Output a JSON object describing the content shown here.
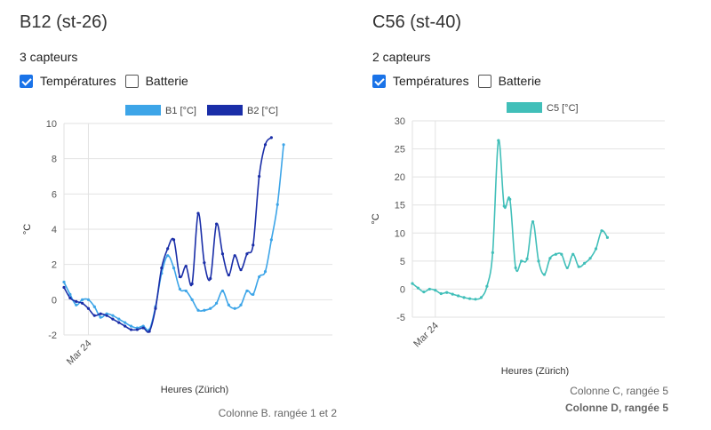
{
  "panels": [
    {
      "title": "B12 (st-26)",
      "subtitle": "3 capteurs",
      "checkboxes": [
        {
          "label": "Températures",
          "checked": true
        },
        {
          "label": "Batterie",
          "checked": false
        }
      ],
      "footer": [
        "Colonne B. rangée 1 et 2"
      ]
    },
    {
      "title": "C56 (st-40)",
      "subtitle": "2 capteurs",
      "checkboxes": [
        {
          "label": "Températures",
          "checked": true
        },
        {
          "label": "Batterie",
          "checked": false
        }
      ],
      "footer": [
        "Colonne C, rangée 5",
        "Colonne D, rangée 5"
      ]
    }
  ],
  "chart_data": [
    {
      "type": "line",
      "xlabel": "Heures (Zürich)",
      "ylabel": "°C",
      "ylim": [
        -2,
        10
      ],
      "yticks": [
        -2,
        0,
        2,
        4,
        6,
        8,
        10
      ],
      "xtick": {
        "label": "Mar 24",
        "at": 4
      },
      "xlim": [
        0,
        44
      ],
      "grid": true,
      "legend": "top",
      "x": [
        0,
        1,
        2,
        3,
        4,
        5,
        6,
        7,
        8,
        9,
        10,
        11,
        12,
        13,
        14,
        15,
        16,
        17,
        18,
        19,
        20,
        21,
        22,
        23,
        24,
        25,
        26,
        27,
        28,
        29,
        30,
        31,
        32,
        33,
        34,
        35,
        36,
        37,
        38,
        39,
        40,
        41,
        42,
        43,
        44
      ],
      "series": [
        {
          "name": "B1 [°C]",
          "color": "#3da5e8",
          "values": [
            1.0,
            0.3,
            -0.3,
            0.0,
            0.0,
            -0.4,
            -1.0,
            -0.8,
            -0.9,
            -1.1,
            -1.3,
            -1.5,
            -1.6,
            -1.5,
            -1.7,
            -0.4,
            1.5,
            2.5,
            1.8,
            0.6,
            0.5,
            0.0,
            -0.6,
            -0.6,
            -0.5,
            -0.2,
            0.5,
            -0.3,
            -0.5,
            -0.3,
            0.5,
            0.3,
            1.3,
            1.6,
            3.4,
            5.4,
            8.8,
            null,
            null,
            null,
            null,
            null,
            null,
            null,
            null
          ]
        },
        {
          "name": "B2 [°C]",
          "color": "#1a2ea8",
          "values": [
            0.7,
            0.1,
            -0.1,
            -0.2,
            -0.5,
            -0.9,
            -0.8,
            -0.9,
            -1.1,
            -1.3,
            -1.5,
            -1.7,
            -1.7,
            -1.6,
            -1.8,
            -0.5,
            1.8,
            2.9,
            3.4,
            1.3,
            1.9,
            0.9,
            4.9,
            2.1,
            1.2,
            4.3,
            2.6,
            1.4,
            2.5,
            1.7,
            2.6,
            3.1,
            7.0,
            8.8,
            9.2,
            null,
            null,
            null,
            null,
            null,
            null,
            null,
            null,
            null,
            null
          ]
        }
      ]
    },
    {
      "type": "line",
      "xlabel": "Heures (Zürich)",
      "ylabel": "°C",
      "ylim": [
        -5,
        30
      ],
      "yticks": [
        -5,
        0,
        5,
        10,
        15,
        20,
        25,
        30
      ],
      "xtick": {
        "label": "Mar 24",
        "at": 4
      },
      "xlim": [
        0,
        44
      ],
      "grid": true,
      "legend": "top",
      "x": [
        0,
        1,
        2,
        3,
        4,
        5,
        6,
        7,
        8,
        9,
        10,
        11,
        12,
        13,
        14,
        15,
        16,
        17,
        18,
        19,
        20,
        21,
        22,
        23,
        24,
        25,
        26,
        27,
        28,
        29,
        30,
        31,
        32,
        33,
        34,
        35,
        36,
        37,
        38,
        39,
        40,
        41,
        42,
        43,
        44
      ],
      "series": [
        {
          "name": "C5 [°C]",
          "color": "#41bfb9",
          "values": [
            1.0,
            0.2,
            -0.5,
            0.0,
            -0.2,
            -0.8,
            -0.6,
            -0.9,
            -1.2,
            -1.5,
            -1.7,
            -1.8,
            -1.5,
            0.5,
            6.5,
            26.5,
            14.8,
            16.0,
            3.8,
            5.0,
            5.4,
            12.0,
            5.0,
            2.6,
            5.5,
            6.2,
            6.2,
            3.8,
            6.2,
            4.0,
            4.6,
            5.5,
            7.2,
            10.4,
            9.2,
            null,
            null,
            null,
            null,
            null,
            null,
            null,
            null,
            null,
            null
          ]
        }
      ]
    }
  ]
}
